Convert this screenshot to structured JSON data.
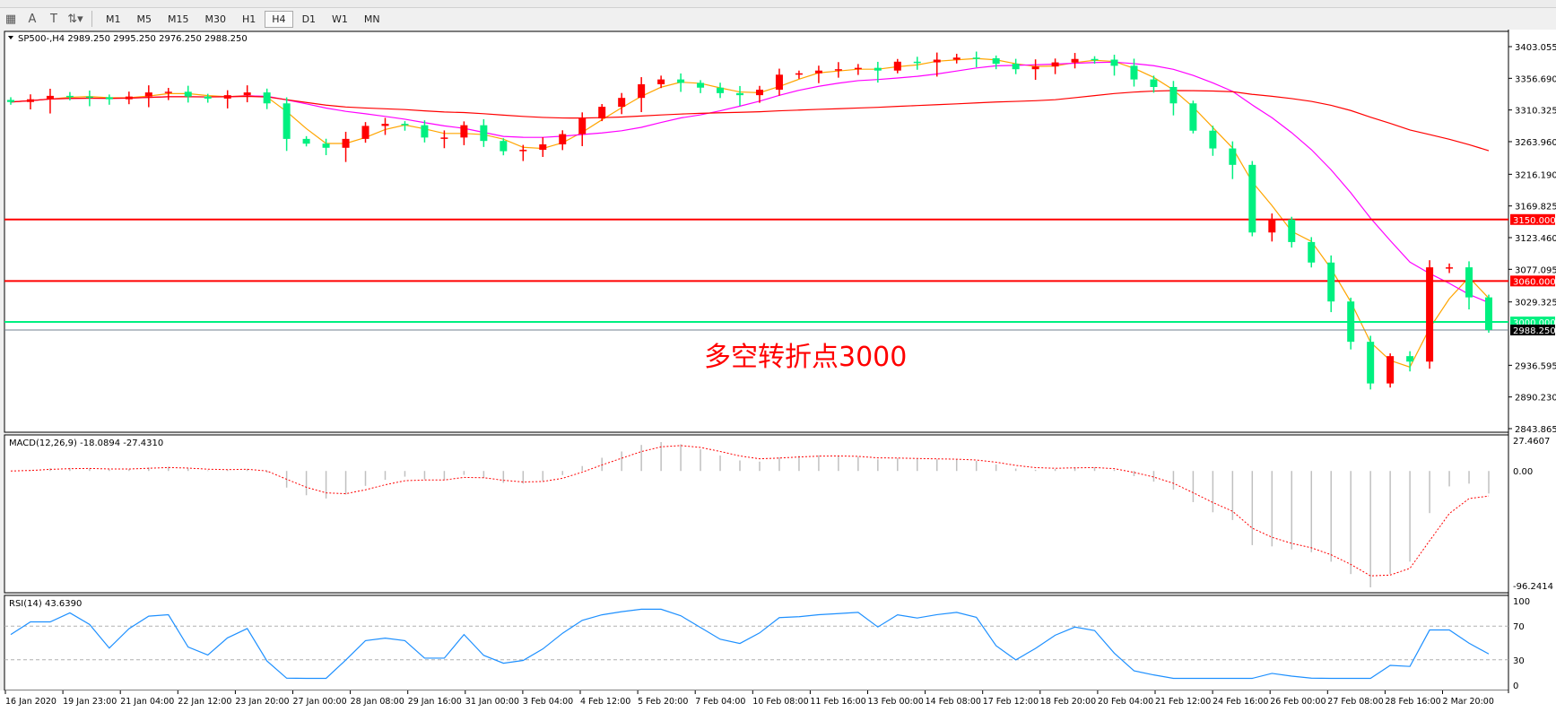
{
  "toolbar": {
    "icons": [
      "grid-icon",
      "text-icon",
      "text-label-icon",
      "arrows-icon"
    ],
    "timeframes": [
      "M1",
      "M5",
      "M15",
      "M30",
      "H1",
      "H4",
      "D1",
      "W1",
      "MN"
    ],
    "active_timeframe": "H4"
  },
  "chart_header": "SP500-,H4  2989.250 2995.250 2976.250 2988.250",
  "annotation": "多空转折点3000",
  "colors": {
    "up": "#ff0000",
    "down": "#00f080",
    "ma_fast": "#ffa500",
    "ma_mid": "#ff00ff",
    "ma_slow": "#ff0000",
    "rsi": "#1e90ff",
    "macd_hist": "#c0c0c0",
    "macd_signal": "#ff0000"
  },
  "chart_data": {
    "type": "candlestick",
    "symbol": "SP500-",
    "timeframe": "H4",
    "ohlc_last": {
      "open": 2989.25,
      "high": 2995.25,
      "low": 2976.25,
      "close": 2988.25
    },
    "close": [
      3322,
      3326,
      3331,
      3330,
      3329,
      3326,
      3330,
      3336,
      3337,
      3330,
      3327,
      3332,
      3336,
      3320,
      3268,
      3261,
      3255,
      3268,
      3287,
      3290,
      3288,
      3270,
      3270,
      3288,
      3265,
      3250,
      3252,
      3260,
      3275,
      3298,
      3315,
      3328,
      3348,
      3355,
      3350,
      3343,
      3335,
      3332,
      3340,
      3362,
      3364,
      3368,
      3370,
      3372,
      3368,
      3381,
      3380,
      3384,
      3387,
      3386,
      3378,
      3370,
      3374,
      3380,
      3385,
      3384,
      3375,
      3355,
      3344,
      3320,
      3280,
      3254,
      3230,
      3131,
      3150,
      3117,
      3087,
      3030,
      2971,
      2910,
      2950,
      2942,
      3080,
      3080,
      3036,
      2988.25
    ],
    "price_ticks": [
      "3403.055",
      "3356.690",
      "3310.325",
      "3263.960",
      "3216.190",
      "3169.825",
      "3123.460",
      "3077.095",
      "3029.325",
      "2936.595",
      "2890.230",
      "2843.865"
    ],
    "ylim": [
      2843.865,
      3403.055
    ],
    "horizontal_lines": [
      {
        "price": 3150.0,
        "label": "3150.000",
        "color": "#ff0000"
      },
      {
        "price": 3060.0,
        "label": "3060.000",
        "color": "#ff0000"
      },
      {
        "price": 3000.0,
        "label": "3000.000",
        "color": "#00f080"
      },
      {
        "price": 2988.25,
        "label": "2988.250",
        "color": "#000000"
      }
    ],
    "time_labels": [
      "16 Jan 2020",
      "19 Jan 23:00",
      "21 Jan 04:00",
      "22 Jan 12:00",
      "23 Jan 20:00",
      "27 Jan 00:00",
      "28 Jan 08:00",
      "29 Jan 16:00",
      "31 Jan 00:00",
      "3 Feb 04:00",
      "4 Feb 12:00",
      "5 Feb 20:00",
      "7 Feb 04:00",
      "10 Feb 08:00",
      "11 Feb 16:00",
      "13 Feb 00:00",
      "14 Feb 08:00",
      "17 Feb 12:00",
      "18 Feb 20:00",
      "20 Feb 04:00",
      "21 Feb 12:00",
      "24 Feb 16:00",
      "26 Feb 00:00",
      "27 Feb 08:00",
      "28 Feb 16:00",
      "2 Mar 20:00"
    ],
    "macd": {
      "label": "MACD(12,26,9) -18.0894 -27.4310",
      "ticks": [
        "27.4607",
        "0.00",
        "-96.2414"
      ],
      "ylim": [
        -96.2414,
        27.4607
      ]
    },
    "rsi": {
      "label": "RSI(14) 43.6390",
      "ticks": [
        "100",
        "70",
        "30",
        "0"
      ],
      "levels": [
        70,
        30
      ],
      "ylim": [
        0,
        100
      ]
    }
  }
}
